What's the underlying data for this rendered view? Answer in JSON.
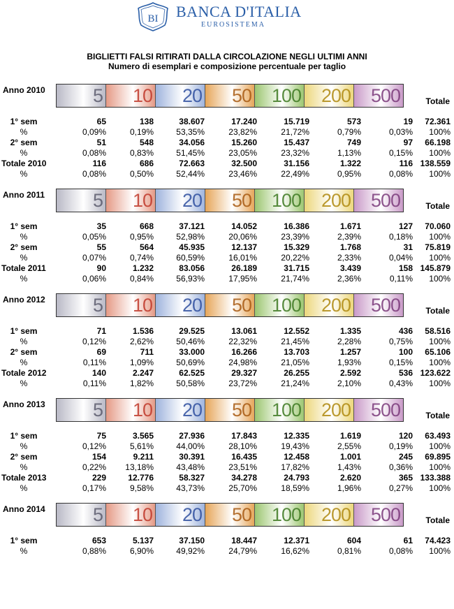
{
  "header": {
    "logo_name": "BANCA D'ITALIA",
    "logo_sub": "EUROSISTEMA",
    "logo_monogram": "BI",
    "brand_color": "#2b5fa8"
  },
  "title": {
    "line1": "BIGLIETTI FALSI RITIRATI DALLA CIRCOLAZIONE NEGLI ULTIMI ANNI",
    "line2": "Numero di esemplari e composizione percentuale per taglio"
  },
  "denominations": [
    "5",
    "10",
    "20",
    "50",
    "100",
    "200",
    "500"
  ],
  "total_header": "Totale",
  "years": [
    {
      "label": "Anno 2010",
      "rows": [
        {
          "label": "1° sem",
          "bold": true,
          "values": [
            "65",
            "138",
            "38.607",
            "17.240",
            "15.719",
            "573",
            "19",
            "72.361"
          ]
        },
        {
          "label": "%",
          "bold": false,
          "values": [
            "0,09%",
            "0,19%",
            "53,35%",
            "23,82%",
            "21,72%",
            "0,79%",
            "0,03%",
            "100%"
          ]
        },
        {
          "label": "2° sem",
          "bold": true,
          "values": [
            "51",
            "548",
            "34.056",
            "15.260",
            "15.437",
            "749",
            "97",
            "66.198"
          ]
        },
        {
          "label": "%",
          "bold": false,
          "values": [
            "0,08%",
            "0,83%",
            "51,45%",
            "23,05%",
            "23,32%",
            "1,13%",
            "0,15%",
            "100%"
          ]
        },
        {
          "label": "Totale 2010",
          "bold": true,
          "values": [
            "116",
            "686",
            "72.663",
            "32.500",
            "31.156",
            "1.322",
            "116",
            "138.559"
          ]
        },
        {
          "label": "%",
          "bold": false,
          "values": [
            "0,08%",
            "0,50%",
            "52,44%",
            "23,46%",
            "22,49%",
            "0,95%",
            "0,08%",
            "100%"
          ]
        }
      ]
    },
    {
      "label": "Anno 2011",
      "rows": [
        {
          "label": "1° sem",
          "bold": true,
          "values": [
            "35",
            "668",
            "37.121",
            "14.052",
            "16.386",
            "1.671",
            "127",
            "70.060"
          ]
        },
        {
          "label": "%",
          "bold": false,
          "values": [
            "0,05%",
            "0,95%",
            "52,98%",
            "20,06%",
            "23,39%",
            "2,39%",
            "0,18%",
            "100%"
          ]
        },
        {
          "label": "2° sem",
          "bold": true,
          "values": [
            "55",
            "564",
            "45.935",
            "12.137",
            "15.329",
            "1.768",
            "31",
            "75.819"
          ]
        },
        {
          "label": "%",
          "bold": false,
          "values": [
            "0,07%",
            "0,74%",
            "60,59%",
            "16,01%",
            "20,22%",
            "2,33%",
            "0,04%",
            "100%"
          ]
        },
        {
          "label": "Totale 2011",
          "bold": true,
          "values": [
            "90",
            "1.232",
            "83.056",
            "26.189",
            "31.715",
            "3.439",
            "158",
            "145.879"
          ]
        },
        {
          "label": "%",
          "bold": false,
          "values": [
            "0,06%",
            "0,84%",
            "56,93%",
            "17,95%",
            "21,74%",
            "2,36%",
            "0,11%",
            "100%"
          ]
        }
      ]
    },
    {
      "label": "Anno 2012",
      "rows": [
        {
          "label": "1° sem",
          "bold": true,
          "values": [
            "71",
            "1.536",
            "29.525",
            "13.061",
            "12.552",
            "1.335",
            "436",
            "58.516"
          ]
        },
        {
          "label": "%",
          "bold": false,
          "values": [
            "0,12%",
            "2,62%",
            "50,46%",
            "22,32%",
            "21,45%",
            "2,28%",
            "0,75%",
            "100%"
          ]
        },
        {
          "label": "2° sem",
          "bold": true,
          "values": [
            "69",
            "711",
            "33.000",
            "16.266",
            "13.703",
            "1.257",
            "100",
            "65.106"
          ]
        },
        {
          "label": "%",
          "bold": false,
          "values": [
            "0,11%",
            "1,09%",
            "50,69%",
            "24,98%",
            "21,05%",
            "1,93%",
            "0,15%",
            "100%"
          ]
        },
        {
          "label": "Totale 2012",
          "bold": true,
          "values": [
            "140",
            "2.247",
            "62.525",
            "29.327",
            "26.255",
            "2.592",
            "536",
            "123.622"
          ]
        },
        {
          "label": "%",
          "bold": false,
          "values": [
            "0,11%",
            "1,82%",
            "50,58%",
            "23,72%",
            "21,24%",
            "2,10%",
            "0,43%",
            "100%"
          ]
        }
      ]
    },
    {
      "label": "Anno 2013",
      "rows": [
        {
          "label": "1° sem",
          "bold": true,
          "values": [
            "75",
            "3.565",
            "27.936",
            "17.843",
            "12.335",
            "1.619",
            "120",
            "63.493"
          ]
        },
        {
          "label": "%",
          "bold": false,
          "values": [
            "0,12%",
            "5,61%",
            "44,00%",
            "28,10%",
            "19,43%",
            "2,55%",
            "0,19%",
            "100%"
          ]
        },
        {
          "label": "2° sem",
          "bold": true,
          "values": [
            "154",
            "9.211",
            "30.391",
            "16.435",
            "12.458",
            "1.001",
            "245",
            "69.895"
          ]
        },
        {
          "label": "%",
          "bold": false,
          "values": [
            "0,22%",
            "13,18%",
            "43,48%",
            "23,51%",
            "17,82%",
            "1,43%",
            "0,36%",
            "100%"
          ]
        },
        {
          "label": "Totale 2013",
          "bold": true,
          "values": [
            "229",
            "12.776",
            "58.327",
            "34.278",
            "24.793",
            "2.620",
            "365",
            "133.388"
          ]
        },
        {
          "label": "%",
          "bold": false,
          "values": [
            "0,17%",
            "9,58%",
            "43,73%",
            "25,70%",
            "18,59%",
            "1,96%",
            "0,27%",
            "100%"
          ]
        }
      ]
    },
    {
      "label": "Anno 2014",
      "rows": [
        {
          "label": "1° sem",
          "bold": true,
          "values": [
            "653",
            "5.137",
            "37.150",
            "18.447",
            "12.371",
            "604",
            "61",
            "74.423"
          ]
        },
        {
          "label": "%",
          "bold": false,
          "values": [
            "0,88%",
            "6,90%",
            "49,92%",
            "24,79%",
            "16,62%",
            "0,81%",
            "0,08%",
            "100%"
          ]
        }
      ]
    }
  ],
  "note_colors": {
    "5": "#b9b9c6",
    "10": "#e59a86",
    "20": "#9fb4dd",
    "50": "#e6a65a",
    "100": "#9cc670",
    "200": "#ecd77c",
    "500": "#c99ac8"
  }
}
